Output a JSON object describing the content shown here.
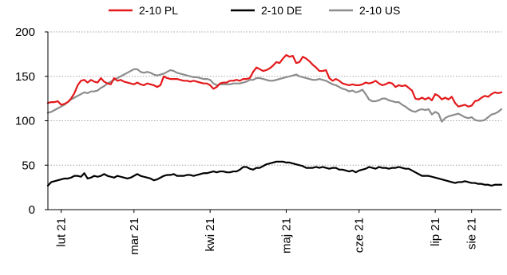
{
  "chart_data": {
    "type": "line",
    "title": "",
    "xlabel": "",
    "ylabel": "",
    "ylim": [
      0,
      200
    ],
    "yticks": [
      "0",
      "50",
      "100",
      "150",
      "200"
    ],
    "y_grid": true,
    "legend_position": "top",
    "x_tick_labels": [
      "lut 21",
      "mar 21",
      "kwi 21",
      "maj 21",
      "cze 21",
      "lip 21",
      "sie 21"
    ],
    "x_tick_index": [
      4,
      26,
      49,
      72,
      94,
      117,
      128
    ],
    "series": [
      {
        "name": "2-10 PL",
        "color": "#e3191b",
        "values": [
          120,
          121,
          121,
          122,
          118,
          119,
          121,
          125,
          131,
          140,
          145,
          146,
          143,
          146,
          144,
          143,
          148,
          144,
          142,
          141,
          148,
          145,
          146,
          144,
          143,
          142,
          141,
          143,
          141,
          140,
          142,
          141,
          140,
          138,
          140,
          150,
          148,
          147,
          147,
          147,
          146,
          145,
          145,
          144,
          145,
          144,
          143,
          142,
          142,
          140,
          136,
          138,
          142,
          143,
          143,
          145,
          145,
          146,
          145,
          147,
          147,
          148,
          155,
          160,
          158,
          156,
          157,
          159,
          162,
          166,
          165,
          170,
          174,
          172,
          173,
          165,
          166,
          172,
          170,
          167,
          163,
          160,
          156,
          156,
          157,
          148,
          145,
          147,
          145,
          142,
          141,
          140,
          141,
          140,
          140,
          141,
          143,
          142,
          143,
          145,
          142,
          140,
          141,
          143,
          142,
          138,
          140,
          139,
          140,
          137,
          134,
          125,
          124,
          126,
          124,
          126,
          123,
          130,
          128,
          124,
          126,
          124,
          127,
          120,
          116,
          117,
          118,
          116,
          117,
          122,
          123,
          126,
          128,
          127,
          130,
          132,
          131,
          132
        ]
      },
      {
        "name": "2-10 DE",
        "color": "#000000",
        "values": [
          27,
          31,
          32,
          33,
          34,
          35,
          35,
          36,
          38,
          38,
          37,
          41,
          35,
          36,
          38,
          37,
          38,
          40,
          38,
          37,
          36,
          38,
          37,
          36,
          35,
          36,
          38,
          40,
          38,
          37,
          36,
          35,
          33,
          34,
          36,
          38,
          39,
          39,
          40,
          38,
          38,
          38,
          39,
          39,
          38,
          39,
          40,
          41,
          41,
          42,
          43,
          42,
          43,
          43,
          42,
          42,
          43,
          43,
          45,
          48,
          48,
          46,
          45,
          47,
          47,
          49,
          51,
          52,
          53,
          54,
          54,
          54,
          53,
          53,
          52,
          51,
          50,
          49,
          47,
          47,
          47,
          48,
          47,
          48,
          47,
          46,
          47,
          47,
          45,
          45,
          44,
          43,
          44,
          42,
          44,
          45,
          46,
          48,
          47,
          46,
          48,
          47,
          47,
          46,
          47,
          47,
          48,
          47,
          46,
          46,
          44,
          42,
          40,
          38,
          38,
          38,
          37,
          36,
          35,
          34,
          33,
          32,
          31,
          30,
          31,
          31,
          32,
          31,
          30,
          30,
          29,
          29,
          28,
          28,
          27,
          28,
          28,
          28
        ]
      },
      {
        "name": "2-10 US",
        "color": "#8c8c8c",
        "values": [
          109,
          110,
          112,
          114,
          116,
          118,
          121,
          124,
          126,
          128,
          130,
          132,
          131,
          133,
          133,
          134,
          137,
          139,
          142,
          144,
          146,
          148,
          150,
          152,
          154,
          156,
          158,
          158,
          155,
          154,
          155,
          154,
          152,
          151,
          152,
          153,
          155,
          157,
          156,
          154,
          153,
          152,
          151,
          150,
          149,
          149,
          148,
          147,
          147,
          146,
          142,
          140,
          141,
          141,
          141,
          141,
          142,
          142,
          142,
          143,
          144,
          146,
          146,
          148,
          148,
          147,
          146,
          145,
          145,
          146,
          147,
          148,
          149,
          150,
          151,
          152,
          150,
          149,
          148,
          147,
          146,
          146,
          147,
          146,
          145,
          143,
          141,
          140,
          138,
          136,
          135,
          133,
          134,
          132,
          133,
          135,
          130,
          124,
          122,
          122,
          123,
          125,
          125,
          123,
          122,
          121,
          121,
          118,
          116,
          113,
          111,
          110,
          112,
          113,
          112,
          113,
          107,
          110,
          108,
          99,
          103,
          105,
          106,
          107,
          108,
          106,
          104,
          103,
          104,
          101,
          100,
          100,
          101,
          104,
          107,
          108,
          110,
          113
        ]
      }
    ]
  }
}
